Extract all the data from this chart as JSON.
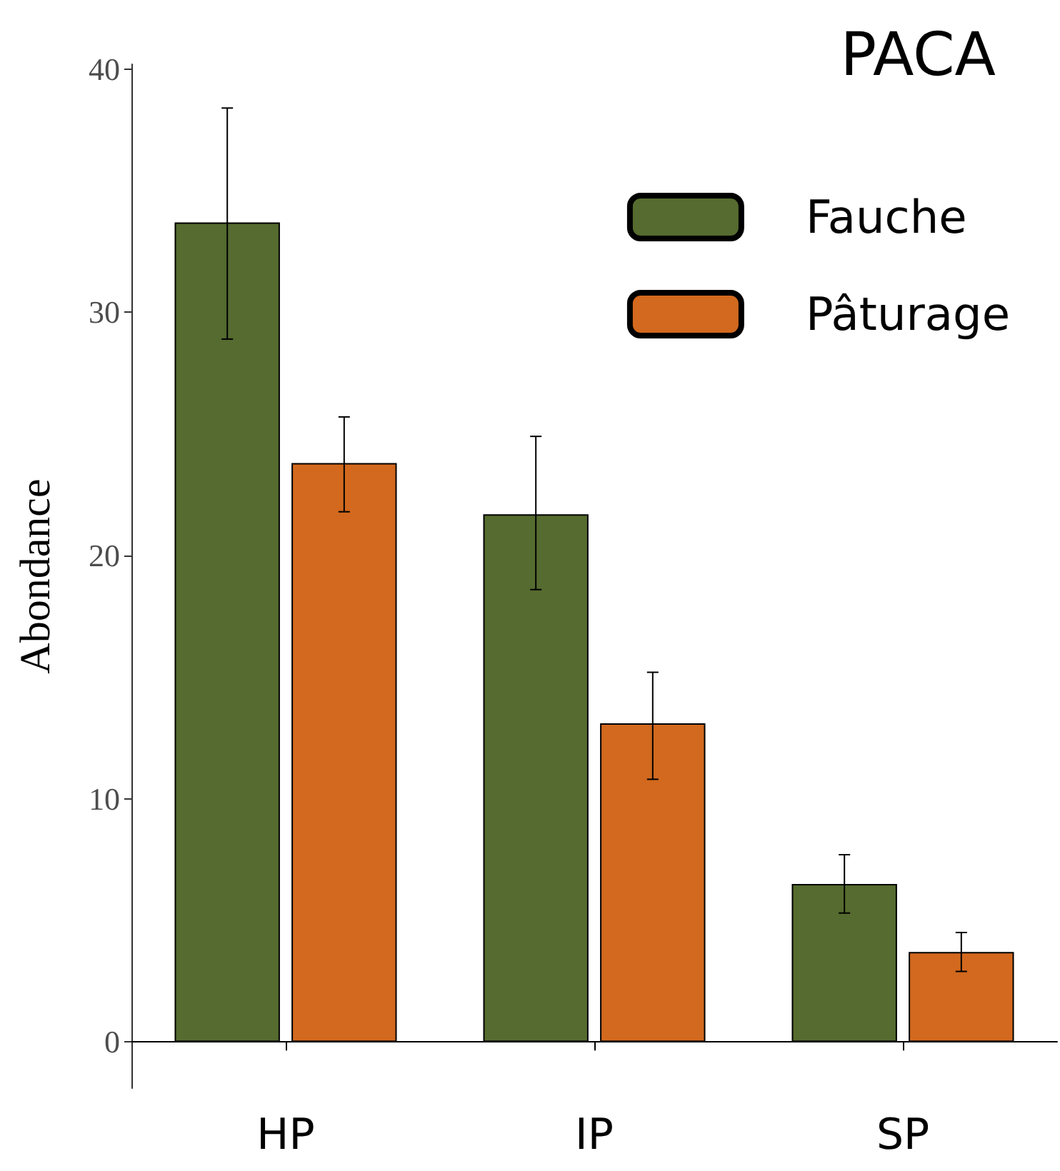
{
  "chart_data": {
    "type": "bar",
    "title": "PACA",
    "ylabel": "Abondance",
    "categories": [
      "HP",
      "IP",
      "SP"
    ],
    "series": [
      {
        "name": "Fauche",
        "color": "#556b2f",
        "values": [
          33.7,
          21.7,
          6.5
        ],
        "errors": [
          [
            28.9,
            38.4
          ],
          [
            18.6,
            24.9
          ],
          [
            5.3,
            7.7
          ]
        ]
      },
      {
        "name": "Pâturage",
        "color": "#d2691e",
        "values": [
          23.8,
          13.1,
          3.7
        ],
        "errors": [
          [
            21.8,
            25.7
          ],
          [
            10.8,
            15.2
          ],
          [
            2.9,
            4.5
          ]
        ]
      }
    ],
    "ylim": [
      -1.9,
      40.2
    ],
    "yticks": [
      0,
      10,
      20,
      30,
      40
    ],
    "grid": false,
    "legend": "top right"
  }
}
